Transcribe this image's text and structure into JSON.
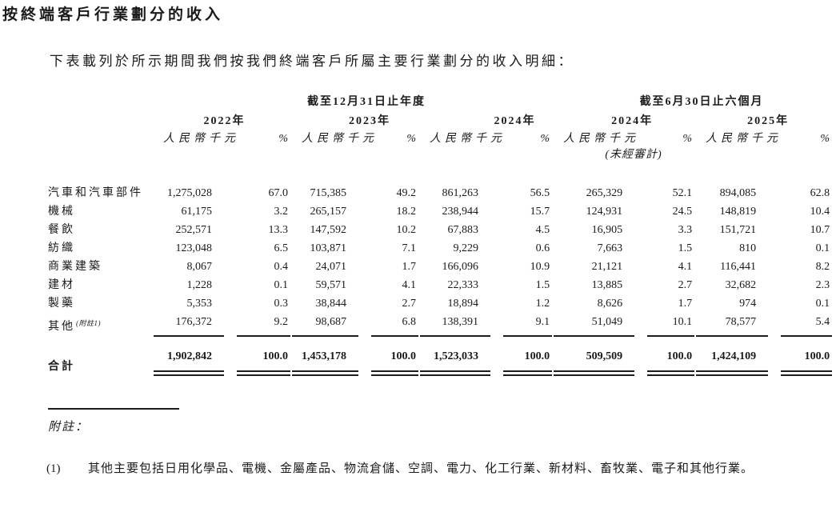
{
  "page": {
    "title": "按終端客戶行業劃分的收入",
    "intro": "下表載列於所示期間我們按我們終端客戶所屬主要行業劃分的收入明細："
  },
  "table": {
    "period_groups": [
      {
        "label": "截至12月31日止年度"
      },
      {
        "label": "截至6月30日止六個月"
      }
    ],
    "years": [
      "2022年",
      "2023年",
      "2024年",
      "2024年",
      "2025年"
    ],
    "unit_label": "人民幣千元",
    "pct_label": "%",
    "unaudited_label": "(未經審計)",
    "rows": [
      {
        "label": "汽車和汽車部件",
        "values": [
          "1,275,028",
          "67.0",
          "715,385",
          "49.2",
          "861,263",
          "56.5",
          "265,329",
          "52.1",
          "894,085",
          "62.8"
        ]
      },
      {
        "label": "機械",
        "values": [
          "61,175",
          "3.2",
          "265,157",
          "18.2",
          "238,944",
          "15.7",
          "124,931",
          "24.5",
          "148,819",
          "10.4"
        ]
      },
      {
        "label": "餐飲",
        "values": [
          "252,571",
          "13.3",
          "147,592",
          "10.2",
          "67,883",
          "4.5",
          "16,905",
          "3.3",
          "151,721",
          "10.7"
        ]
      },
      {
        "label": "紡織",
        "values": [
          "123,048",
          "6.5",
          "103,871",
          "7.1",
          "9,229",
          "0.6",
          "7,663",
          "1.5",
          "810",
          "0.1"
        ]
      },
      {
        "label": "商業建築",
        "values": [
          "8,067",
          "0.4",
          "24,071",
          "1.7",
          "166,096",
          "10.9",
          "21,121",
          "4.1",
          "116,441",
          "8.2"
        ]
      },
      {
        "label": "建材",
        "values": [
          "1,228",
          "0.1",
          "59,571",
          "4.1",
          "22,333",
          "1.5",
          "13,885",
          "2.7",
          "32,682",
          "2.3"
        ]
      },
      {
        "label": "製藥",
        "values": [
          "5,353",
          "0.3",
          "38,844",
          "2.7",
          "18,894",
          "1.2",
          "8,626",
          "1.7",
          "974",
          "0.1"
        ]
      },
      {
        "label": "其他",
        "sup": "(附註1)",
        "values": [
          "176,372",
          "9.2",
          "98,687",
          "6.8",
          "138,391",
          "9.1",
          "51,049",
          "10.1",
          "78,577",
          "5.4"
        ]
      }
    ],
    "total_row": {
      "label": "合計",
      "values": [
        "1,902,842",
        "100.0",
        "1,453,178",
        "100.0",
        "1,523,033",
        "100.0",
        "509,509",
        "100.0",
        "1,424,109",
        "100.0"
      ]
    }
  },
  "footnotes": {
    "heading": "附註：",
    "items": [
      {
        "marker": "(1)",
        "text": "其他主要包括日用化學品、電機、金屬產品、物流倉儲、空調、電力、化工行業、新材料、畜牧業、電子和其他行業。"
      }
    ]
  }
}
